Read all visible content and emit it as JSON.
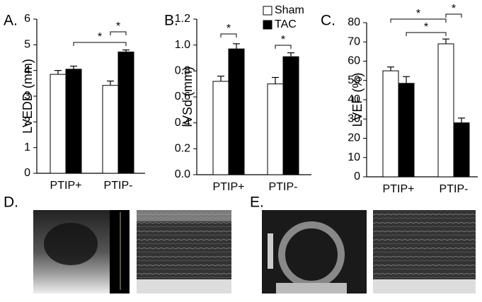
{
  "chart_data": [
    {
      "type": "bar",
      "label": "A.",
      "y_label": "LVEDD (mm)",
      "categories": [
        "PTIP+",
        "PTIP-"
      ],
      "series": [
        {
          "color": "#ffffff",
          "values": [
            3.85,
            3.42
          ],
          "errors": [
            0.15,
            0.17
          ]
        },
        {
          "color": "#000000",
          "values": [
            4.05,
            4.72
          ],
          "errors": [
            0.12,
            0.08
          ]
        }
      ],
      "ylim": [
        0,
        6
      ],
      "yticks": [
        0,
        1,
        2,
        3,
        4,
        5,
        6
      ],
      "annotations": [
        "*",
        "*"
      ]
    },
    {
      "type": "bar",
      "label": "B.",
      "y_label": "IVSd (mm)",
      "categories": [
        "PTIP+",
        "PTIP-"
      ],
      "series": [
        {
          "name": "Sham",
          "color": "#ffffff",
          "values": [
            0.72,
            0.7
          ],
          "errors": [
            0.04,
            0.05
          ]
        },
        {
          "name": "TAC",
          "color": "#000000",
          "values": [
            0.97,
            0.91
          ],
          "errors": [
            0.04,
            0.03
          ]
        }
      ],
      "legend": true,
      "ylim": [
        0,
        1.2
      ],
      "yticks": [
        {
          "value": 0,
          "label": "0.0"
        },
        0.2,
        0.4,
        0.6,
        0.8,
        {
          "value": 1,
          "label": "1.0"
        },
        1.2
      ],
      "annotations": [
        "*",
        "*"
      ]
    },
    {
      "type": "bar",
      "label": "C.",
      "y_label": "LVEF (%)",
      "categories": [
        "PTIP+",
        "PTIP-"
      ],
      "series": [
        {
          "color": "#ffffff",
          "values": [
            55,
            69
          ],
          "errors": [
            2,
            2.5
          ]
        },
        {
          "color": "#000000",
          "values": [
            48.5,
            28
          ],
          "errors": [
            3.5,
            2.5
          ]
        }
      ],
      "ylim": [
        0,
        80
      ],
      "yticks": [
        0,
        10,
        20,
        30,
        40,
        50,
        60,
        70,
        80
      ],
      "annotations": [
        "*",
        "*",
        "*"
      ]
    }
  ],
  "image_panels": [
    {
      "label": "D."
    },
    {
      "label": "E."
    }
  ]
}
